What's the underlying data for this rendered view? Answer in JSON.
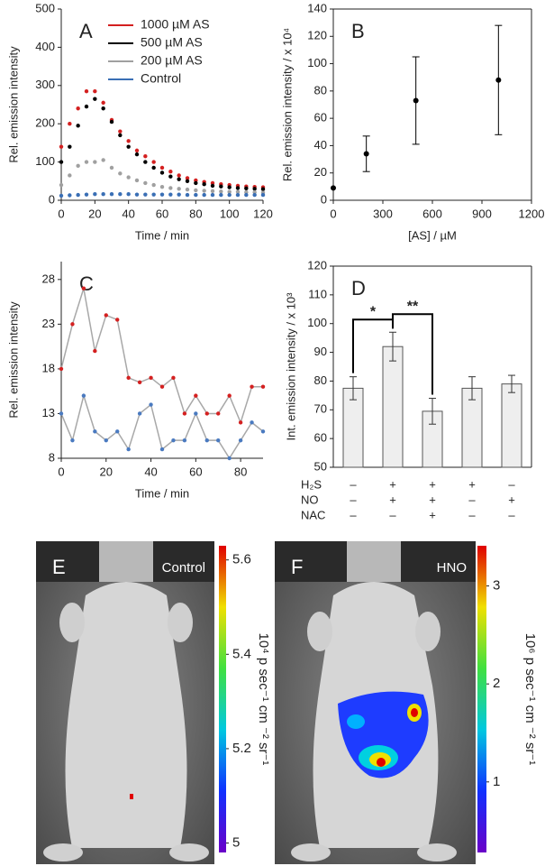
{
  "chart_data": [
    {
      "type": "scatter",
      "label": "A",
      "ylabel": "Rel. emission intensity",
      "xlabel": "Time / min",
      "xlim": [
        0,
        120
      ],
      "xticks": [
        0,
        20,
        40,
        60,
        80,
        100,
        120
      ],
      "ylim": [
        0,
        500
      ],
      "yticks": [
        0,
        100,
        200,
        300,
        400,
        500
      ],
      "legend": "upper right",
      "x": [
        0,
        5,
        10,
        15,
        20,
        25,
        30,
        35,
        40,
        45,
        50,
        55,
        60,
        65,
        70,
        75,
        80,
        85,
        90,
        95,
        100,
        105,
        110,
        115,
        120
      ],
      "series": [
        {
          "name": "1000 µM AS",
          "color": "#d42020",
          "values": [
            140,
            200,
            240,
            285,
            285,
            255,
            210,
            180,
            155,
            130,
            115,
            100,
            85,
            75,
            65,
            58,
            52,
            48,
            45,
            42,
            40,
            38,
            36,
            35,
            34
          ]
        },
        {
          "name": "500 µM AS",
          "color": "#000000",
          "values": [
            100,
            140,
            195,
            245,
            265,
            240,
            205,
            170,
            140,
            120,
            100,
            85,
            72,
            62,
            55,
            50,
            45,
            42,
            38,
            36,
            34,
            32,
            31,
            30,
            29
          ]
        },
        {
          "name": "200 µM AS",
          "color": "#a0a0a0",
          "values": [
            40,
            65,
            90,
            100,
            100,
            105,
            85,
            70,
            60,
            52,
            45,
            40,
            35,
            32,
            30,
            28,
            26,
            25,
            24,
            23,
            22,
            22,
            21,
            21,
            20
          ]
        },
        {
          "name": "Control",
          "color": "#3a6fb5",
          "values": [
            12,
            13,
            14,
            15,
            16,
            16,
            16,
            16,
            16,
            15,
            15,
            15,
            15,
            15,
            15,
            14,
            14,
            14,
            14,
            14,
            14,
            14,
            14,
            14,
            14
          ]
        }
      ]
    },
    {
      "type": "errorbar",
      "label": "B",
      "ylabel": "Rel. emission intensity / x 10⁴",
      "xlabel": "[AS] / µM",
      "box": true,
      "xlim": [
        0,
        1200
      ],
      "xticks": [
        0,
        300,
        600,
        900,
        1200
      ],
      "ylim": [
        0,
        140
      ],
      "yticks": [
        0,
        20,
        40,
        60,
        80,
        100,
        120,
        140
      ],
      "color": "#000000",
      "x": [
        0,
        200,
        500,
        1000
      ],
      "values": [
        9,
        34,
        73,
        88
      ],
      "errors": [
        null,
        13,
        32,
        40
      ]
    },
    {
      "type": "line",
      "label": "C",
      "ylabel": "Rel. emission intensity",
      "xlabel": "Time / min",
      "xlim": [
        0,
        90
      ],
      "xticks": [
        0,
        20,
        40,
        60,
        80
      ],
      "ylim": [
        8,
        30
      ],
      "yticks": [
        8,
        13,
        18,
        23,
        28
      ],
      "line_color": "#a8a8a8",
      "x": [
        0,
        5,
        10,
        15,
        20,
        25,
        30,
        35,
        40,
        45,
        50,
        55,
        60,
        65,
        70,
        75,
        80,
        85,
        90
      ],
      "series": [
        {
          "color": "#d42020",
          "values": [
            18,
            23,
            27,
            20,
            24,
            23.5,
            17,
            16.5,
            17,
            16,
            17,
            13,
            15,
            13,
            13,
            15,
            12,
            16,
            16
          ]
        },
        {
          "color": "#4a7ac0",
          "values": [
            13,
            10,
            15,
            11,
            10,
            11,
            9,
            13,
            14,
            9,
            10,
            10,
            13,
            10,
            10,
            8,
            10,
            12,
            11
          ]
        }
      ]
    },
    {
      "type": "bar",
      "label": "D",
      "ylabel": "Int. emission intensity / x 10³",
      "box": true,
      "ylim": [
        50,
        120
      ],
      "yticks": [
        50,
        60,
        70,
        80,
        90,
        100,
        110,
        120
      ],
      "color": "#eeeeee",
      "values": [
        77.5,
        92,
        69.5,
        77.5,
        79
      ],
      "errors": [
        4,
        5,
        4.5,
        4,
        3
      ],
      "significance": [
        "*",
        "**"
      ],
      "conditions": {
        "rows": [
          "H₂S",
          "NO",
          "NAC"
        ],
        "cells": [
          [
            "–",
            "+",
            "+",
            "+",
            "–"
          ],
          [
            "–",
            "+",
            "+",
            "–",
            "+"
          ],
          [
            "–",
            "–",
            "+",
            "–",
            "–"
          ]
        ]
      }
    }
  ],
  "images": [
    {
      "label": "E",
      "tag": "Control",
      "colorbar": {
        "lim": [
          4.98,
          5.63
        ],
        "ticks": [
          5.0,
          5.2,
          5.4,
          5.6
        ],
        "unit": "10⁴ p sec⁻¹ cm ⁻² sr⁻¹"
      }
    },
    {
      "label": "F",
      "tag": "HNO",
      "colorbar": {
        "lim": [
          0.28,
          3.41
        ],
        "ticks": [
          1.0,
          2.0,
          3.0
        ],
        "unit": "10⁶ p sec⁻¹ cm ⁻² sr⁻¹"
      }
    }
  ]
}
